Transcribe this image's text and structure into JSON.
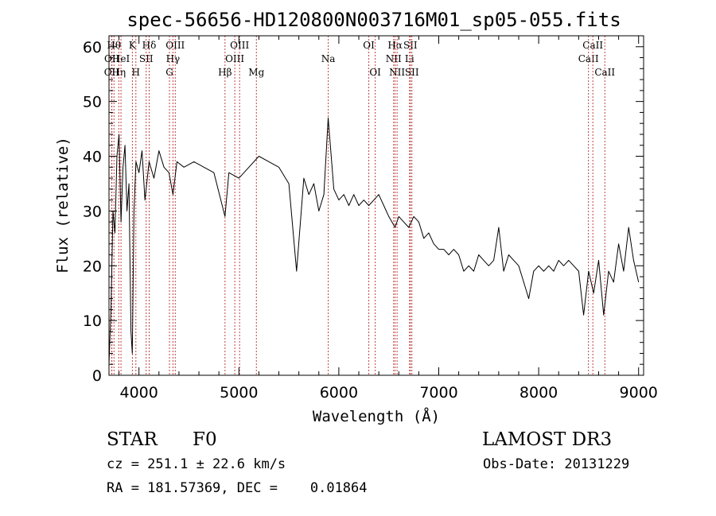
{
  "chart_data": {
    "type": "line",
    "title": "spec-56656-HD120800N003716M01_sp05-055.fits",
    "xlabel": "Wavelength (Å)",
    "ylabel": "Flux (relative)",
    "xlim": [
      3700,
      9050
    ],
    "ylim": [
      0,
      62
    ],
    "xticks": [
      4000,
      5000,
      6000,
      7000,
      8000,
      9000
    ],
    "yticks": [
      0,
      10,
      20,
      30,
      40,
      50,
      60
    ],
    "line_color": "#000000",
    "marker_color": "#c04040",
    "series": [
      {
        "x": [
          3700,
          3720,
          3740,
          3760,
          3780,
          3800,
          3820,
          3840,
          3860,
          3880,
          3900,
          3920,
          3933,
          3950,
          3970,
          4000,
          4030,
          4060,
          4101,
          4150,
          4200,
          4250,
          4300,
          4340,
          4380,
          4450,
          4550,
          4650,
          4750,
          4861,
          4900,
          5000,
          5100,
          5200,
          5300,
          5400,
          5500,
          5577,
          5650,
          5700,
          5750,
          5800,
          5850,
          5893,
          5950,
          6000,
          6050,
          6100,
          6150,
          6200,
          6250,
          6300,
          6350,
          6400,
          6450,
          6500,
          6563,
          6600,
          6650,
          6700,
          6750,
          6800,
          6850,
          6900,
          6950,
          7000,
          7050,
          7100,
          7150,
          7200,
          7250,
          7300,
          7350,
          7400,
          7450,
          7500,
          7550,
          7600,
          7650,
          7700,
          7750,
          7800,
          7850,
          7900,
          7950,
          8000,
          8050,
          8100,
          8150,
          8200,
          8250,
          8300,
          8350,
          8400,
          8450,
          8500,
          8550,
          8600,
          8650,
          8700,
          8750,
          8800,
          8850,
          8900,
          8950,
          9000
        ],
        "y": [
          2,
          12,
          30,
          26,
          40,
          44,
          28,
          38,
          42,
          30,
          35,
          8,
          4,
          30,
          39,
          37,
          41,
          32,
          39,
          36,
          41,
          38,
          37,
          33,
          39,
          38,
          39,
          38,
          37,
          29,
          37,
          36,
          38,
          40,
          39,
          38,
          35,
          19,
          36,
          33,
          35,
          30,
          33,
          47,
          34,
          32,
          33,
          31,
          33,
          31,
          32,
          31,
          32,
          33,
          31,
          29,
          27,
          29,
          28,
          27,
          29,
          28,
          25,
          26,
          24,
          23,
          23,
          22,
          23,
          22,
          19,
          20,
          19,
          22,
          21,
          20,
          21,
          27,
          19,
          22,
          21,
          20,
          17,
          14,
          19,
          20,
          19,
          20,
          19,
          21,
          20,
          21,
          20,
          19,
          11,
          19,
          15,
          21,
          11,
          19,
          17,
          24,
          19,
          27,
          21,
          17
        ]
      }
    ],
    "lines": [
      {
        "label": "OII",
        "x": 3727,
        "row": 2
      },
      {
        "label": "Hθ",
        "x": 3750,
        "row": 0
      },
      {
        "label": "OII",
        "x": 3729,
        "row": 1
      },
      {
        "label": "Hη",
        "x": 3798,
        "row": 2
      },
      {
        "label": "HeI",
        "x": 3820,
        "row": 1
      },
      {
        "label": "K",
        "x": 3934,
        "row": 0
      },
      {
        "label": "H",
        "x": 3969,
        "row": 2
      },
      {
        "label": "SII",
        "x": 4072,
        "row": 1
      },
      {
        "label": "Hδ",
        "x": 4102,
        "row": 0
      },
      {
        "label": "G",
        "x": 4305,
        "row": 2
      },
      {
        "label": "Hγ",
        "x": 4340,
        "row": 1
      },
      {
        "label": "OIII",
        "x": 4363,
        "row": 0
      },
      {
        "label": "Hβ",
        "x": 4861,
        "row": 2
      },
      {
        "label": "OIII",
        "x": 4959,
        "row": 1
      },
      {
        "label": "OIII",
        "x": 5007,
        "row": 0
      },
      {
        "label": "Mg",
        "x": 5175,
        "row": 2
      },
      {
        "label": "Na",
        "x": 5894,
        "row": 1
      },
      {
        "label": "OI",
        "x": 6300,
        "row": 0
      },
      {
        "label": "OI",
        "x": 6364,
        "row": 2
      },
      {
        "label": "NII",
        "x": 6548,
        "row": 1
      },
      {
        "label": "Hα",
        "x": 6563,
        "row": 0
      },
      {
        "label": "NII",
        "x": 6583,
        "row": 2
      },
      {
        "label": "Li",
        "x": 6708,
        "row": 1
      },
      {
        "label": "SII",
        "x": 6716,
        "row": 0
      },
      {
        "label": "SII",
        "x": 6731,
        "row": 2
      },
      {
        "label": "CaII",
        "x": 8498,
        "row": 1
      },
      {
        "label": "CaII",
        "x": 8542,
        "row": 0
      },
      {
        "label": "CaII",
        "x": 8662,
        "row": 2
      }
    ]
  },
  "info": {
    "object_class": "STAR",
    "subclass": "F0",
    "survey": "LAMOST DR3",
    "cz": "cz = 251.1 ± 22.6 km/s",
    "obs_date": "Obs-Date: 20131229",
    "radec": "RA = 181.57369, DEC =    0.01864"
  }
}
